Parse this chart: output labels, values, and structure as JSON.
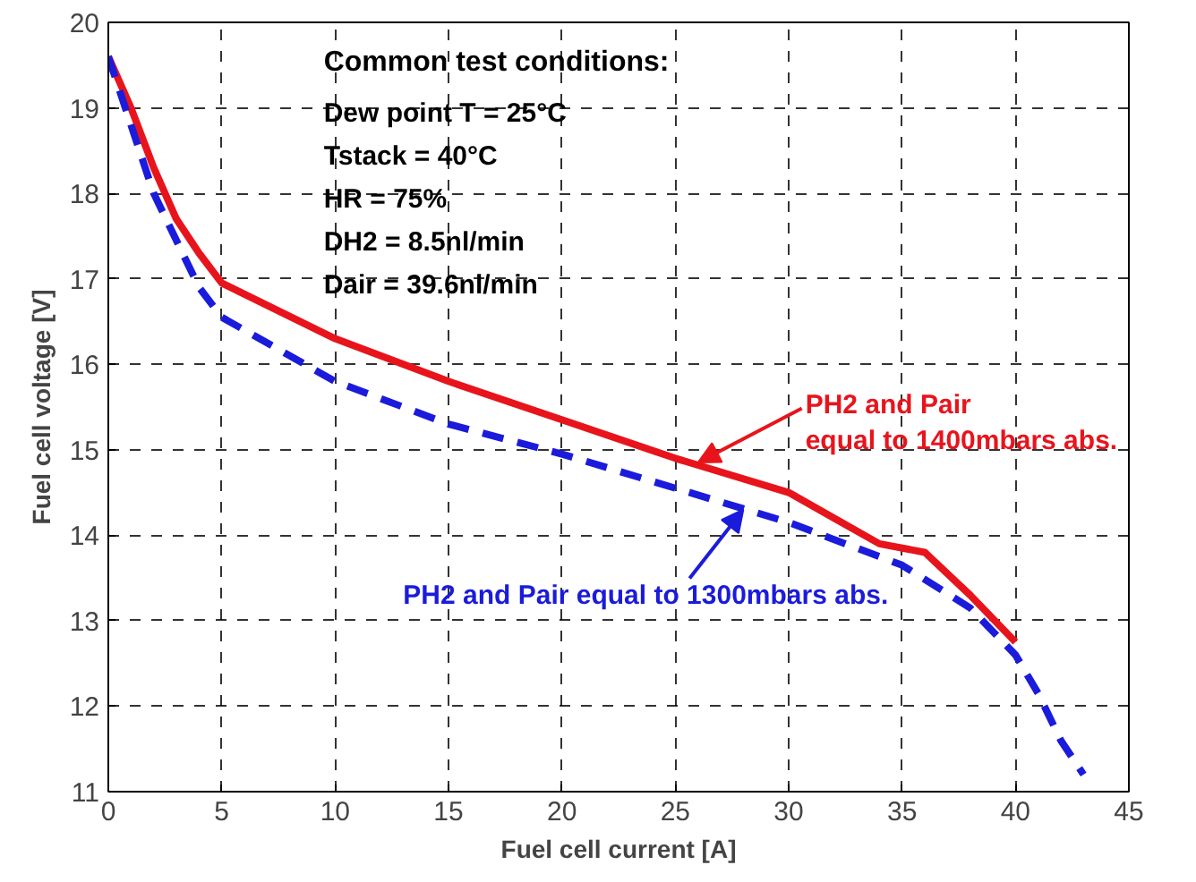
{
  "chart_data": {
    "type": "line",
    "xlabel": "Fuel cell current [A]",
    "ylabel": "Fuel cell voltage [V]",
    "xlim": [
      0,
      45
    ],
    "xticks": [
      0,
      5,
      10,
      15,
      20,
      25,
      30,
      35,
      40,
      45
    ],
    "ylim": [
      11,
      20
    ],
    "yticks": [
      11,
      12,
      13,
      14,
      15,
      16,
      17,
      18,
      19,
      20
    ],
    "grid": true,
    "series": [
      {
        "color": "#e8141c",
        "line_style": "solid",
        "x": [
          0,
          1,
          2,
          3,
          4,
          5,
          10,
          15,
          20,
          25,
          30,
          32,
          34,
          36,
          38,
          40
        ],
        "values": [
          19.6,
          19.0,
          18.3,
          17.7,
          17.3,
          16.95,
          16.3,
          15.8,
          15.35,
          14.9,
          14.5,
          14.2,
          13.9,
          13.8,
          13.3,
          12.75
        ]
      },
      {
        "color": "#1b1bdc",
        "line_style": "dashed",
        "x": [
          0,
          2,
          4,
          5,
          10,
          15,
          20,
          25,
          30,
          35,
          38,
          40,
          41,
          42,
          43
        ],
        "values": [
          19.6,
          18.0,
          16.9,
          16.55,
          15.8,
          15.3,
          14.95,
          14.55,
          14.15,
          13.65,
          13.15,
          12.6,
          12.15,
          11.6,
          11.2
        ]
      }
    ],
    "annotations": [
      "Common test conditions:",
      "Dew point T = 25°C",
      "Tstack = 40°C",
      "HR = 75%",
      "DH2 = 8.5nl/min",
      "Dair = 39.6nl/min",
      {
        "text": "PH2 and Pair\nequal to 1400mbars abs.",
        "x": 26,
        "y": 14.85
      },
      {
        "text": "PH2 and Pair equal to 1300mbars abs.",
        "x": 28,
        "y": 14.3
      }
    ]
  }
}
